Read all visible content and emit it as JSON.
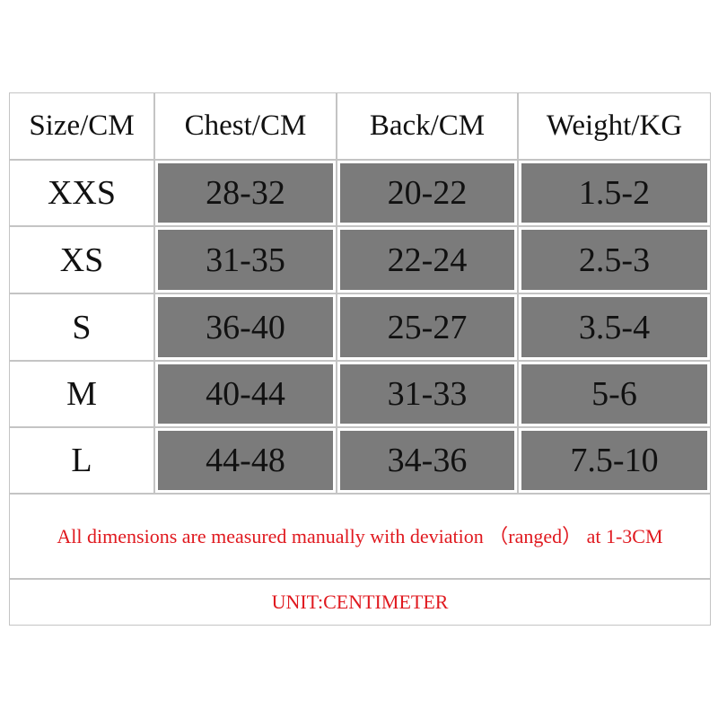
{
  "table": {
    "header": [
      "Size/CM",
      "Chest/CM",
      "Back/CM",
      "Weight/KG"
    ],
    "rows": [
      [
        "XXS",
        "28-32",
        "20-22",
        "1.5-2"
      ],
      [
        "XS",
        "31-35",
        "22-24",
        "2.5-3"
      ],
      [
        "S",
        "36-40",
        "25-27",
        "3.5-4"
      ],
      [
        "M",
        "40-44",
        "31-33",
        "5-6"
      ],
      [
        "L",
        "44-48",
        "34-36",
        "7.5-10"
      ]
    ],
    "note": "All dimensions are measured manually with deviation （ranged） at 1-3CM",
    "unit": "UNIT:CENTIMETER"
  }
}
